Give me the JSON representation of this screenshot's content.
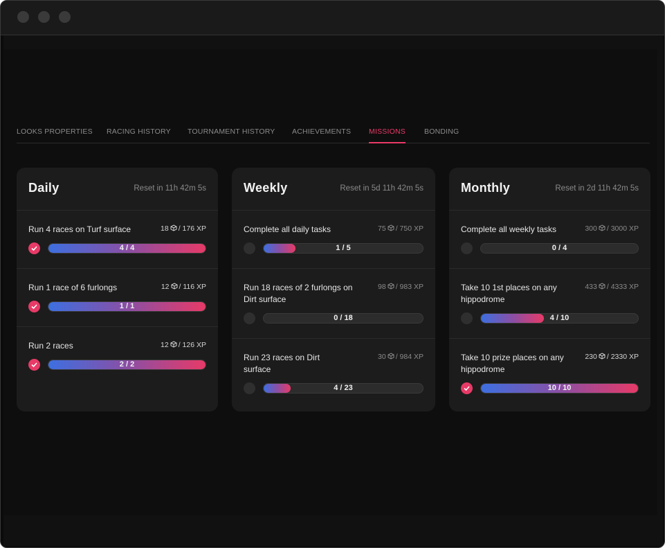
{
  "tabs": [
    {
      "label": "LOOKS PROPERTIES"
    },
    {
      "label": "RACING HISTORY"
    },
    {
      "label": "TOURNAMENT HISTORY"
    },
    {
      "label": "ACHIEVEMENTS"
    },
    {
      "label": "MISSIONS"
    },
    {
      "label": "BONDING"
    }
  ],
  "active_tab": "MISSIONS",
  "colors": {
    "accent": "#ea3a68",
    "gradient_start": "#3d6fe0",
    "gradient_end": "#e73a67"
  },
  "cards": [
    {
      "title": "Daily",
      "reset": "Reset in 11h 42m 5s",
      "missions": [
        {
          "title": "Run 4 races on Turf surface",
          "xp_earned": "18",
          "xp_total": "/ 176 XP",
          "progress": "4 / 4",
          "fraction": 1.0,
          "done": true
        },
        {
          "title": "Run 1 race of 6 furlongs",
          "xp_earned": "12",
          "xp_total": "/ 116 XP",
          "progress": "1 / 1",
          "fraction": 1.0,
          "done": true
        },
        {
          "title": "Run 2 races",
          "xp_earned": "12",
          "xp_total": "/ 126 XP",
          "progress": "2 / 2",
          "fraction": 1.0,
          "done": true
        }
      ]
    },
    {
      "title": "Weekly",
      "reset": "Reset in 5d 11h 42m 5s",
      "missions": [
        {
          "title": "Complete all daily tasks",
          "xp_earned": "75",
          "xp_total": "/ 750 XP",
          "progress": "1 / 5",
          "fraction": 0.2,
          "done": false
        },
        {
          "title": "Run 18 races of 2 furlongs on Dirt surface",
          "xp_earned": "98",
          "xp_total": "/ 983 XP",
          "progress": "0 / 18",
          "fraction": 0.0,
          "done": false
        },
        {
          "title": "Run 23 races on Dirt surface",
          "xp_earned": "30",
          "xp_total": "/ 984 XP",
          "progress": "4 / 23",
          "fraction": 0.17,
          "done": false
        }
      ]
    },
    {
      "title": "Monthly",
      "reset": "Reset in 2d 11h 42m 5s",
      "missions": [
        {
          "title": "Complete all weekly tasks",
          "xp_earned": "300",
          "xp_total": "/ 3000 XP",
          "progress": "0 / 4",
          "fraction": 0.0,
          "done": false
        },
        {
          "title": "Take 10 1st places on any hippodrome",
          "xp_earned": "433",
          "xp_total": "/ 4333 XP",
          "progress": "4 / 10",
          "fraction": 0.4,
          "done": false
        },
        {
          "title": "Take 10 prize places on any hippodrome",
          "xp_earned": "230",
          "xp_total": "/ 2330 XP",
          "progress": "10 / 10",
          "fraction": 1.0,
          "done": true
        }
      ]
    }
  ]
}
